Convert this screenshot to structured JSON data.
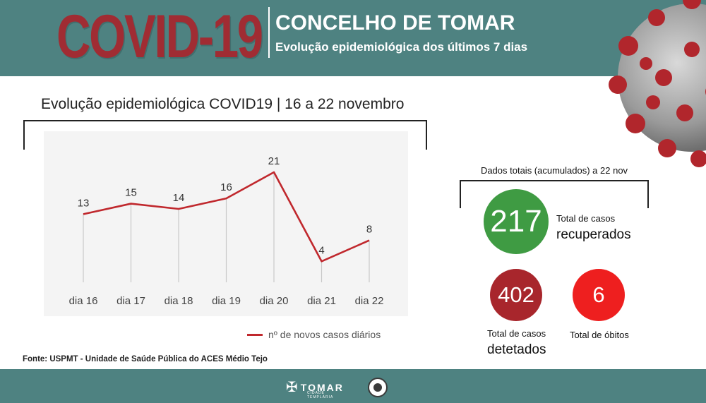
{
  "header": {
    "covid_title": "COVID-19",
    "heading": "CONCELHO DE TOMAR",
    "subheading": "Evolução epidemiológica dos últimos 7 dias"
  },
  "chart_data": {
    "type": "line",
    "title": "Evolução epidemiológica COVID19 | 16 a 22 novembro",
    "categories": [
      "dia 16",
      "dia 17",
      "dia 18",
      "dia 19",
      "dia 20",
      "dia 21",
      "dia 22"
    ],
    "series": [
      {
        "name": "nº de novos casos diários",
        "values": [
          13,
          15,
          14,
          16,
          21,
          4,
          8
        ],
        "color": "#c0282d"
      }
    ],
    "xlabel": "",
    "ylabel": "",
    "ylim": [
      0,
      21
    ],
    "grid": false,
    "legend": "bottom-right"
  },
  "totals": {
    "title": "Dados totais (acumulados) a 22 nov",
    "recovered": {
      "value": "217",
      "label_small": "Total de casos",
      "label_big": "recuperados",
      "color": "#3f9b43"
    },
    "detected": {
      "value": "402",
      "label_small": "Total de casos",
      "label_big": "detetados",
      "color": "#a8262c"
    },
    "deaths": {
      "value": "6",
      "label_small": "Total de óbitos",
      "color": "#ee1f1f"
    }
  },
  "source": "Fonte: USPMT - Unidade de Saúde Pública do ACES Médio Tejo",
  "footer": {
    "logo_name": "TOMAR",
    "logo_tagline": "CIDADE TEMPLÁRIA"
  },
  "colors": {
    "band": "#4e8281",
    "title_red": "#a02c33"
  }
}
